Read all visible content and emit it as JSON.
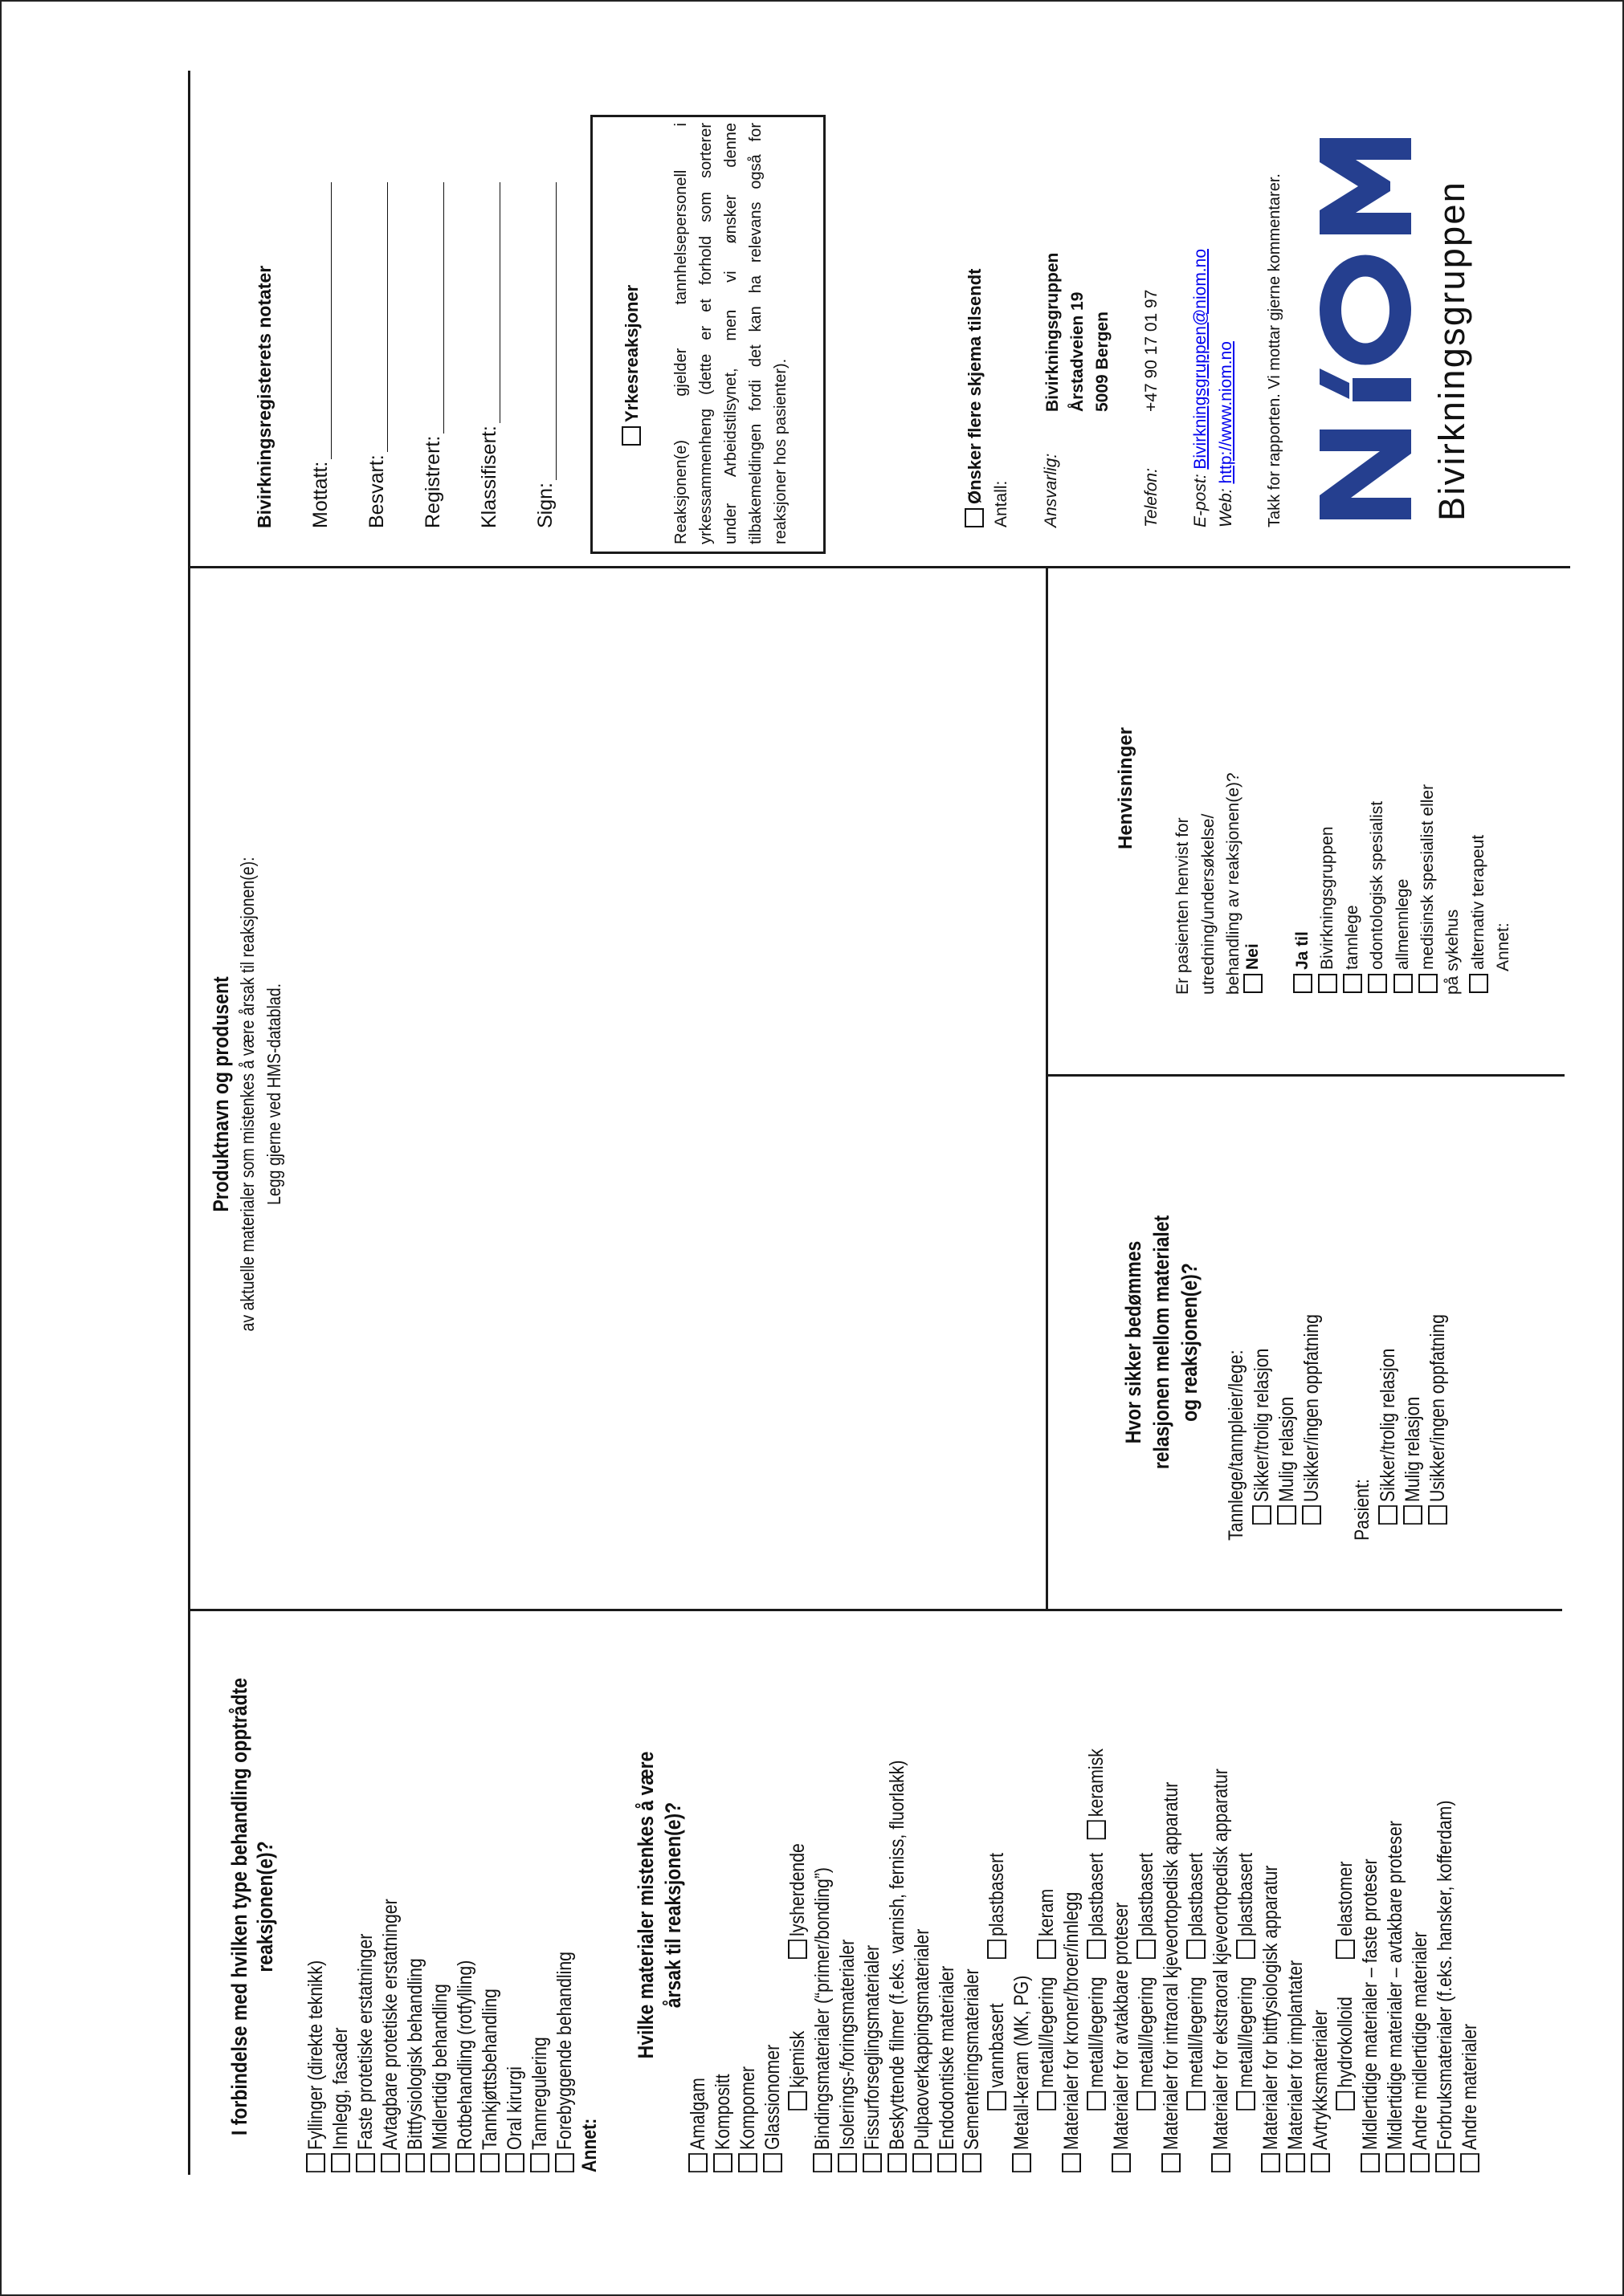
{
  "treatment": {
    "title_lines": [
      "I forbindelse med hvilken type behandling opptrådte",
      "reaksjonen(e)?"
    ],
    "items": [
      "Fyllinger (direkte teknikk)",
      "Innlegg, fasader",
      "Faste protetiske erstatninger",
      "Avtagbare protetiske erstatninger",
      "Bittfysiologisk behandling",
      "Midlertidig behandling",
      "Rotbehandling (rotfylling)",
      "Tannkjøttsbehandling",
      "Oral kirurgi",
      "Tannregulering",
      "Forebyggende behandling"
    ],
    "other_label": "Annet:"
  },
  "materials": {
    "title_lines": [
      "Hvilke materialer mistenkes å være",
      "årsak til reaksjonen(e)?"
    ],
    "rows": [
      {
        "label": "Amalgam"
      },
      {
        "label": "Kompositt"
      },
      {
        "label": "Kompomer"
      },
      {
        "label": "Glassionomer"
      },
      {
        "options": [
          "kjemisk",
          "lysherdende"
        ]
      },
      {
        "label": "Bindingsmaterialer (“primer/bonding”)"
      },
      {
        "label": "Isolerings-/foringsmaterialer"
      },
      {
        "label": "Fissurforseglingsmaterialer"
      },
      {
        "label": "Beskyttende filmer (f.eks. varnish, ferniss, fluorlakk)"
      },
      {
        "label": "Pulpaoverkappingsmaterialer"
      },
      {
        "label": "Endodontiske materialer"
      },
      {
        "label": "Sementeringsmaterialer"
      },
      {
        "options": [
          "vannbasert",
          "plastbasert"
        ]
      },
      {
        "label": "Metall-keram (MK, PG)"
      },
      {
        "options": [
          "metall/legering",
          "keram"
        ]
      },
      {
        "label": "Materialer for kroner/broer/innlegg"
      },
      {
        "options": [
          "metall/legering",
          "plastbasert",
          "keramisk"
        ]
      },
      {
        "label": "Materialer for avtakbare proteser"
      },
      {
        "options": [
          "metall/legering",
          "plastbasert"
        ]
      },
      {
        "label": "Materialer for intraoral kjeveortopedisk apparatur"
      },
      {
        "options": [
          "metall/legering",
          "plastbasert"
        ]
      },
      {
        "label": "Materialer for ekstraoral kjeveortopedisk apparatur"
      },
      {
        "options": [
          "metall/legering",
          "plastbasert"
        ]
      },
      {
        "label": "Materialer for bittfysiologisk apparatur"
      },
      {
        "label": "Materialer for implantater"
      },
      {
        "label": "Avtrykksmaterialer"
      },
      {
        "options": [
          "hydrokolloid",
          "elastomer"
        ]
      },
      {
        "label": "Midlertidige materialer – faste proteser"
      },
      {
        "label": "Midlertidige materialer – avtakbare proteser"
      },
      {
        "label": "Andre midlertidige materialer"
      },
      {
        "label": "Forbruksmaterialer (f.eks. hansker, kofferdam)"
      },
      {
        "label": "Andre materialer"
      }
    ]
  },
  "product": {
    "title": "Produktnavn og produsent",
    "lines": [
      "av aktuelle materialer som mistenkes å være årsak til reaksjonen(e):",
      "Legg gjerne ved HMS-datablad."
    ]
  },
  "certainty": {
    "title_lines": [
      "Hvor sikker bedømmes",
      "relasjonen mellom materialet",
      "og reaksjonen(e)?"
    ],
    "dentist_label": "Tannlege/tannpleier/lege:",
    "dentist_options": [
      "Sikker/trolig relasjon",
      "Mulig relasjon",
      "Usikker/ingen oppfatning"
    ],
    "patient_label": "Pasient:",
    "patient_options": [
      "Sikker/trolig relasjon",
      "Mulig relasjon",
      "Usikker/ingen oppfatning"
    ]
  },
  "referrals": {
    "title": "Henvisninger",
    "question_lines": [
      "Er pasienten henvist for",
      "utredning/undersøkelse/",
      "behandling av reaksjonen(e)?"
    ],
    "no_label": "Nei",
    "yes_label": "Ja til",
    "yes_options": [
      "Bivirkningsgruppen",
      "tannlege",
      "odontologisk spesialist",
      "allmennlege",
      "medisinsk spesialist eller"
    ],
    "yes_option_continuation": "på sykehus",
    "last_option": "alternativ terapeut",
    "other_label": "Annet:"
  },
  "registry": {
    "title": "Bivirkningsregisterets notater",
    "fields": [
      "Mottatt:",
      "Besvart:",
      "Registrert:",
      "Klassifisert:",
      "Sign:"
    ]
  },
  "occupational": {
    "label": "Yrkesreaksjoner",
    "lines": [
      "Reaksjonen(e) gjelder tannhelsepersonell i",
      "yrkessammenheng (dette er et forhold som sorterer",
      "under Arbeidstilsynet, men vi ønsker denne",
      "tilbakemeldingen fordi det kan ha relevans også for",
      "reaksjoner hos pasienter)."
    ]
  },
  "contact": {
    "more_forms_label": "Ønsker flere skjema tilsendt",
    "count_label": "Antall:",
    "responsible_label": "Ansvarlig:",
    "responsible_lines": [
      "Bivirkningsgruppen",
      "Årstadveien 19",
      "5009 Bergen"
    ],
    "phone_label": "Telefon:",
    "phone": "+47 90 17 01 97",
    "email_label": "E-post:",
    "email": "Bivirkningsgruppen@niom.no",
    "web_label": "Web:",
    "web": "http://www.niom.no",
    "thanks": "Takk for rapporten. Vi mottar gjerne kommentarer."
  },
  "logo": {
    "text": "NIOM",
    "subtitle": "Bivirkningsgruppen",
    "color": "#253f8f"
  },
  "link_color": "#0000ee"
}
